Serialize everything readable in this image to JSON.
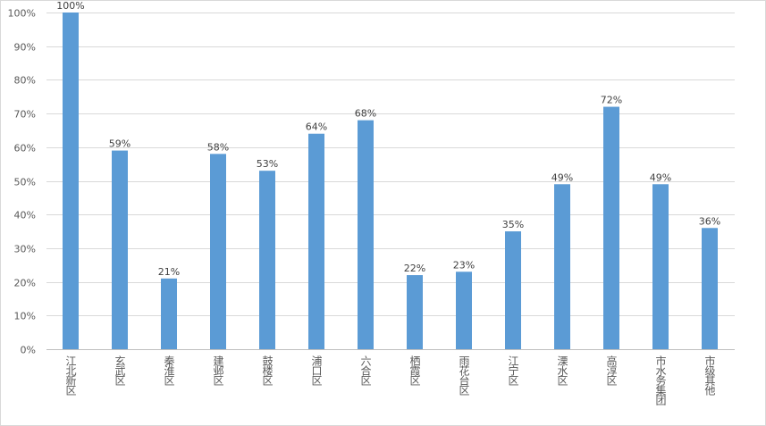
{
  "chart_data": {
    "type": "bar",
    "title": "",
    "xlabel": "",
    "ylabel": "",
    "ylim": [
      0,
      100
    ],
    "yticks": [
      "0%",
      "10%",
      "20%",
      "30%",
      "40%",
      "50%",
      "60%",
      "70%",
      "80%",
      "90%",
      "100%"
    ],
    "grid": true,
    "categories": [
      "江北新区",
      "玄武区",
      "秦淮区",
      "建邺区",
      "鼓楼区",
      "浦口区",
      "六合区",
      "栖霞区",
      "雨花台区",
      "江宁区",
      "溧水区",
      "高淳区",
      "市水务集团",
      "市级其他"
    ],
    "values": [
      100,
      59,
      21,
      58,
      53,
      64,
      68,
      22,
      23,
      35,
      49,
      72,
      49,
      36
    ],
    "data_labels": [
      "100%",
      "59%",
      "21%",
      "58%",
      "53%",
      "64%",
      "68%",
      "22%",
      "23%",
      "35%",
      "49%",
      "72%",
      "49%",
      "36%"
    ],
    "bar_color": "#5b9bd5"
  }
}
